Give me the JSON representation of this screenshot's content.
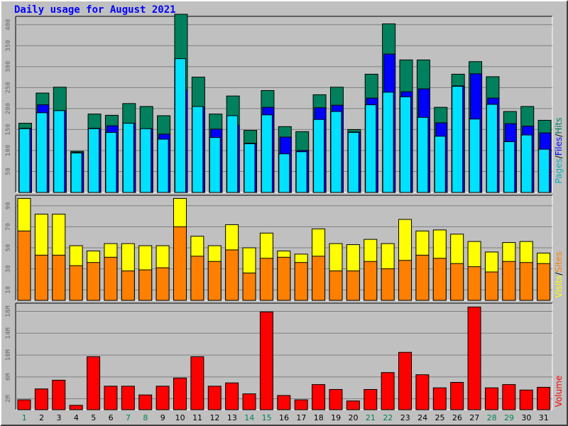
{
  "title": "Daily usage for August 2021",
  "chart_data": [
    {
      "type": "bar",
      "name": "pages-files-hits",
      "categories": [
        "1",
        "2",
        "3",
        "4",
        "5",
        "6",
        "7",
        "8",
        "9",
        "10",
        "11",
        "12",
        "13",
        "14",
        "15",
        "16",
        "17",
        "18",
        "19",
        "20",
        "21",
        "22",
        "23",
        "24",
        "25",
        "26",
        "27",
        "28",
        "29",
        "30",
        "31"
      ],
      "weekend_days": [
        "1",
        "7",
        "8",
        "14",
        "15",
        "21",
        "22",
        "28",
        "29"
      ],
      "ylim": [
        0,
        420
      ],
      "yticks": [
        "50",
        "100",
        "150",
        "200",
        "250",
        "300",
        "350",
        "400"
      ],
      "axis_label_parts": [
        "Pages",
        "/",
        "Files",
        "/",
        "Hits"
      ],
      "series": [
        {
          "name": "Hits",
          "color": "#00805c",
          "values": [
            165,
            237,
            251,
            98,
            187,
            184,
            212,
            205,
            183,
            425,
            275,
            187,
            230,
            148,
            243,
            157,
            145,
            233,
            251,
            150,
            282,
            402,
            316,
            316,
            203,
            282,
            312,
            276,
            193,
            205,
            172
          ]
        },
        {
          "name": "Files",
          "color": "#0000ff",
          "values": [
            153,
            209,
            195,
            95,
            153,
            159,
            165,
            152,
            139,
            244,
            203,
            151,
            160,
            117,
            203,
            132,
            100,
            202,
            208,
            144,
            225,
            330,
            240,
            247,
            166,
            254,
            283,
            225,
            164,
            158,
            142
          ]
        },
        {
          "name": "Pages",
          "color": "#00e0ff",
          "values": [
            152,
            190,
            195,
            94,
            152,
            143,
            165,
            152,
            127,
            319,
            205,
            131,
            183,
            116,
            185,
            92,
            97,
            174,
            193,
            143,
            209,
            239,
            228,
            179,
            134,
            253,
            175,
            210,
            121,
            137,
            103
          ]
        }
      ]
    },
    {
      "type": "bar",
      "name": "visits-sites",
      "categories": [
        "1",
        "2",
        "3",
        "4",
        "5",
        "6",
        "7",
        "8",
        "9",
        "10",
        "11",
        "12",
        "13",
        "14",
        "15",
        "16",
        "17",
        "18",
        "19",
        "20",
        "21",
        "22",
        "23",
        "24",
        "25",
        "26",
        "27",
        "28",
        "29",
        "30",
        "31"
      ],
      "ylim": [
        0,
        100
      ],
      "yticks": [
        "10",
        "30",
        "50",
        "70",
        "90"
      ],
      "axis_label_parts": [
        "Visits",
        "/",
        "Sites"
      ],
      "series": [
        {
          "name": "Visits",
          "color": "#ffff00",
          "values": [
            97,
            82,
            82,
            52,
            47,
            54,
            54,
            52,
            52,
            97,
            61,
            52,
            72,
            50,
            64,
            47,
            44,
            68,
            54,
            53,
            58,
            54,
            77,
            66,
            67,
            63,
            56,
            46,
            55,
            56,
            45
          ]
        },
        {
          "name": "Sites",
          "color": "#ff8000",
          "values": [
            66,
            43,
            43,
            33,
            36,
            41,
            28,
            29,
            31,
            70,
            42,
            37,
            48,
            26,
            40,
            41,
            36,
            42,
            28,
            28,
            37,
            30,
            38,
            43,
            40,
            35,
            32,
            27,
            37,
            36,
            35
          ]
        }
      ]
    },
    {
      "type": "bar",
      "name": "volume",
      "categories": [
        "1",
        "2",
        "3",
        "4",
        "5",
        "6",
        "7",
        "8",
        "9",
        "10",
        "11",
        "12",
        "13",
        "14",
        "15",
        "16",
        "17",
        "18",
        "19",
        "20",
        "21",
        "22",
        "23",
        "24",
        "25",
        "26",
        "27",
        "28",
        "29",
        "30",
        "31"
      ],
      "unit": "MB",
      "ylim": [
        0,
        19.5
      ],
      "yticks": [
        "2M",
        "6M",
        "10M",
        "14M",
        "18M"
      ],
      "axis_label_parts": [
        "Volume"
      ],
      "series": [
        {
          "name": "Volume",
          "color": "#ff0000",
          "values": [
            1.8,
            3.8,
            5.4,
            0.8,
            9.7,
            4.3,
            4.3,
            2.7,
            4.3,
            5.8,
            9.7,
            4.3,
            4.9,
            2.9,
            17.9,
            2.6,
            1.8,
            4.6,
            3.7,
            1.6,
            3.7,
            6.8,
            10.5,
            6.4,
            4.0,
            5.0,
            18.8,
            4.0,
            4.6,
            3.6,
            4.1
          ]
        }
      ]
    }
  ]
}
